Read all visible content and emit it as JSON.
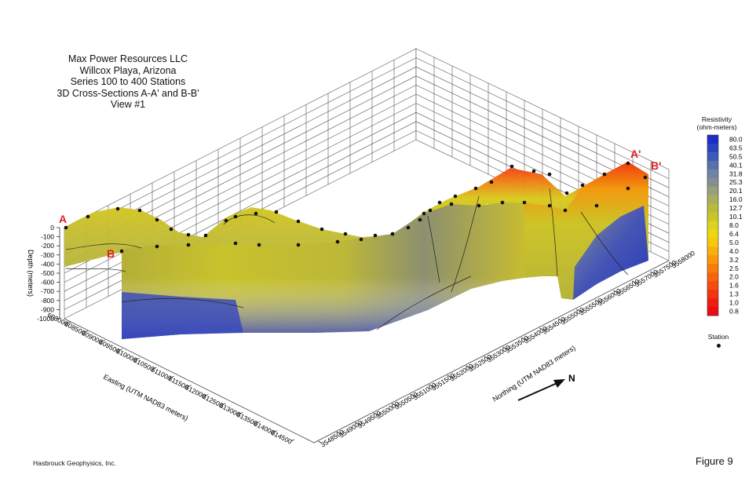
{
  "title_lines": [
    "Max Power Resources LLC",
    "Willcox Playa, Arizona",
    "Series 100 to 400 Stations",
    "3D Cross-Sections A-A' and B-B'",
    "View #1"
  ],
  "section_labels": {
    "a": "A",
    "a_prime": "A'",
    "b": "B",
    "b_prime": "B'"
  },
  "axes": {
    "depth_label": "Depth (meters)",
    "depth_ticks": [
      "0",
      "-100",
      "-200",
      "-300",
      "-400",
      "-500",
      "-600",
      "-700",
      "-800",
      "-900",
      "-1000"
    ],
    "easting_label": "Easting (UTM NAD83 meters)",
    "easting_ticks": [
      "608000",
      "608500",
      "609000",
      "609500",
      "610000",
      "610500",
      "611000",
      "611500",
      "612000",
      "612500",
      "613000",
      "613500",
      "614000",
      "614500"
    ],
    "northing_label": "Northing (UTM NAD83 meters)",
    "northing_ticks": [
      "3548500",
      "3549000",
      "3549500",
      "3550000",
      "3550500",
      "3551000",
      "3551500",
      "3552000",
      "3552500",
      "3553000",
      "3553500",
      "3554000",
      "3554500",
      "3555000",
      "3555500",
      "3556000",
      "3556500",
      "3557000",
      "3557500",
      "3558000"
    ]
  },
  "north_label": "N",
  "legend": {
    "title_line1": "Resistivity",
    "title_line2": "(ohm-meters)",
    "values": [
      "80.0",
      "63.5",
      "50.5",
      "40.1",
      "31.8",
      "25.3",
      "20.1",
      "16.0",
      "12.7",
      "10.1",
      "8.0",
      "6.4",
      "5.0",
      "4.0",
      "3.2",
      "2.5",
      "2.0",
      "1.6",
      "1.3",
      "1.0",
      "0.8"
    ],
    "colors": [
      "#1a2ec8",
      "#2a44c0",
      "#3c5ab8",
      "#5670b0",
      "#6f84a4",
      "#858f92",
      "#96a07c",
      "#a8ae5c",
      "#b8ba3c",
      "#cac62a",
      "#dcd41c",
      "#ecd810",
      "#f6c80e",
      "#f8b00c",
      "#f8960c",
      "#f87c0c",
      "#f6640c",
      "#f44c0e",
      "#f23410",
      "#f01c12",
      "#ee0a12"
    ]
  },
  "station_legend_label": "Station",
  "credit": "Hasbrouck Geophysics, Inc.",
  "figure_label": "Figure 9"
}
